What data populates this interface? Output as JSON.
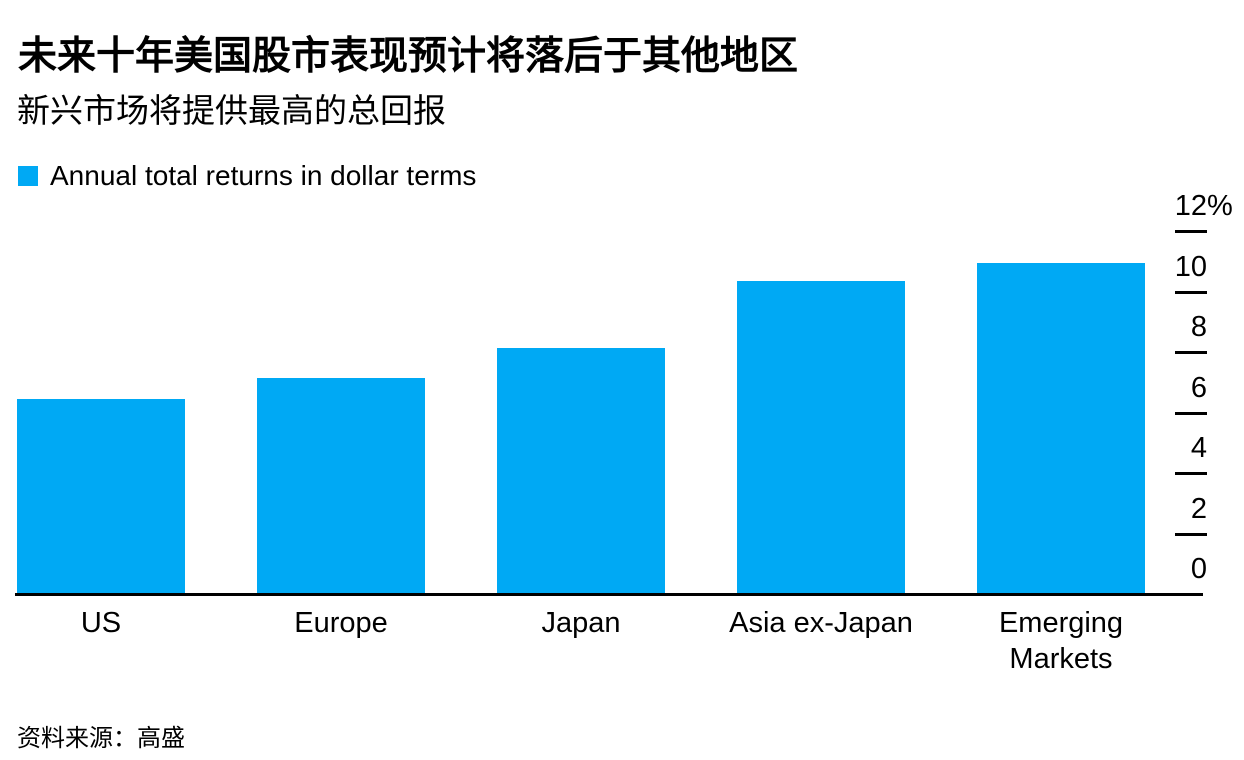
{
  "header": {
    "title": "未来十年美国股市表现预计将落后于其他地区",
    "subtitle": "新兴市场将提供最高的总回报"
  },
  "legend": {
    "label": "Annual total returns in dollar terms"
  },
  "footer": {
    "source": "资料来源：高盛"
  },
  "colors": {
    "bar": "#00A9F4",
    "text": "#000000",
    "axis_line": "#000000"
  },
  "chart_data": {
    "type": "bar",
    "title": "未来十年美国股市表现预计将落后于其他地区",
    "subtitle": "新兴市场将提供最高的总回报",
    "series_label": "Annual total returns in dollar terms",
    "categories": [
      "US",
      "Europe",
      "Japan",
      "Asia ex-Japan",
      "Emerging Markets"
    ],
    "values": [
      6.4,
      7.1,
      8.1,
      10.3,
      10.9
    ],
    "unit": "%",
    "ylim": [
      0,
      12
    ],
    "y_ticks": [
      {
        "value": 12,
        "label": "12",
        "suffix": "%"
      },
      {
        "value": 10,
        "label": "10",
        "suffix": ""
      },
      {
        "value": 8,
        "label": "8",
        "suffix": ""
      },
      {
        "value": 6,
        "label": "6",
        "suffix": ""
      },
      {
        "value": 4,
        "label": "4",
        "suffix": ""
      },
      {
        "value": 2,
        "label": "2",
        "suffix": ""
      },
      {
        "value": 0,
        "label": "0",
        "suffix": ""
      }
    ],
    "axis_side": "right",
    "grid": false,
    "legend_position": "top-left",
    "bar_color": "#00A9F4",
    "source": "资料来源：高盛"
  }
}
